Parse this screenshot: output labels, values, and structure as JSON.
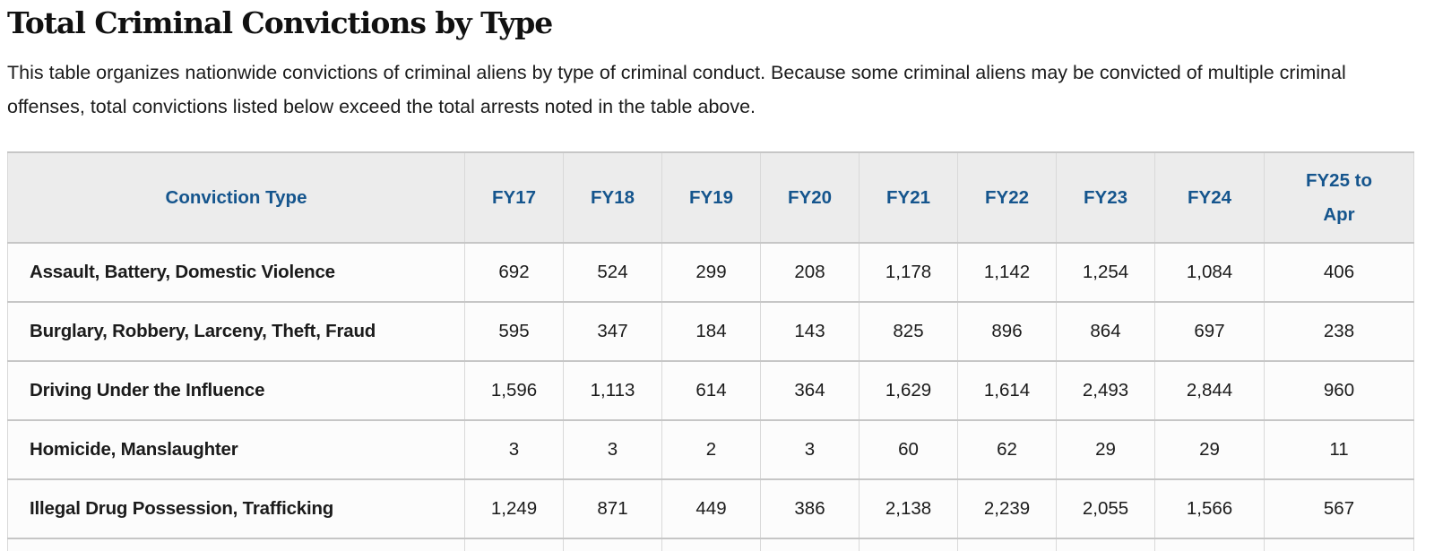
{
  "page": {
    "title": "Total Criminal Convictions by Type",
    "description": "This table organizes nationwide convictions of criminal aliens by type of criminal conduct. Because some criminal aliens may be convicted of multiple criminal offenses, total convictions listed below exceed the total arrests noted in the table above."
  },
  "colors": {
    "header_text": "#15558d",
    "header_bg": "#ececec",
    "border_h": "#c6c6c6",
    "border_v": "#d9d9d9",
    "text": "#1b1b1b"
  },
  "table": {
    "columns": [
      "Conviction Type",
      "FY17",
      "FY18",
      "FY19",
      "FY20",
      "FY21",
      "FY22",
      "FY23",
      "FY24",
      "FY25 to Apr"
    ],
    "rows": [
      {
        "label": "Assault, Battery, Domestic Violence",
        "values": [
          "692",
          "524",
          "299",
          "208",
          "1,178",
          "1,142",
          "1,254",
          "1,084",
          "406"
        ]
      },
      {
        "label": "Burglary, Robbery, Larceny, Theft, Fraud",
        "values": [
          "595",
          "347",
          "184",
          "143",
          "825",
          "896",
          "864",
          "697",
          "238"
        ]
      },
      {
        "label": "Driving Under the Influence",
        "values": [
          "1,596",
          "1,113",
          "614",
          "364",
          "1,629",
          "1,614",
          "2,493",
          "2,844",
          "960"
        ]
      },
      {
        "label": "Homicide, Manslaughter",
        "values": [
          "3",
          "3",
          "2",
          "3",
          "60",
          "62",
          "29",
          "29",
          "11"
        ]
      },
      {
        "label": "Illegal Drug Possession, Trafficking",
        "values": [
          "1,249",
          "871",
          "449",
          "386",
          "2,138",
          "2,239",
          "2,055",
          "1,566",
          "567"
        ]
      }
    ]
  }
}
